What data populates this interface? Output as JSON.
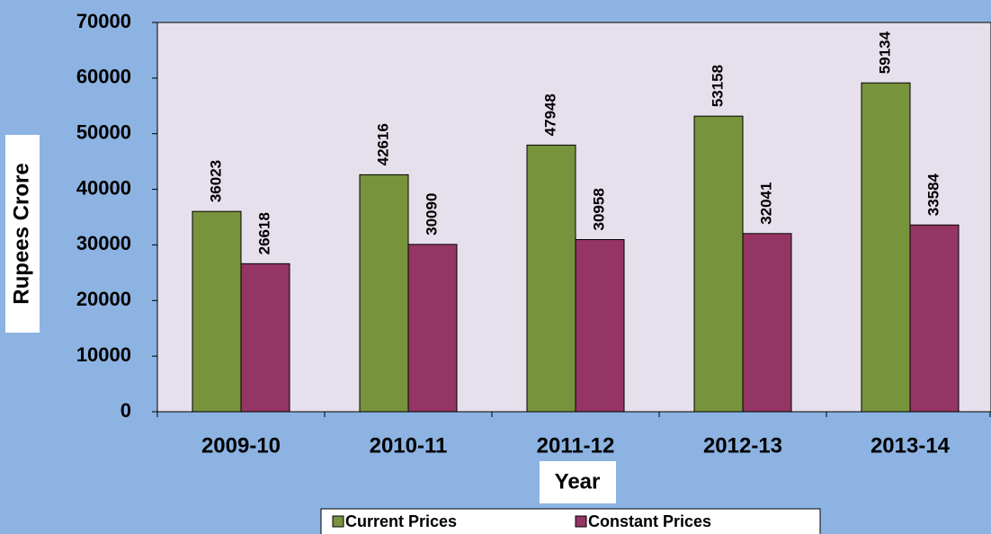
{
  "chart_data": {
    "type": "bar",
    "categories": [
      "2009-10",
      "2010-11",
      "2011-12",
      "2012-13",
      "2013-14"
    ],
    "series": [
      {
        "name": "Current Prices",
        "color": "#77933c",
        "values": [
          36023,
          42616,
          47948,
          53158,
          59134
        ]
      },
      {
        "name": "Constant Prices",
        "color": "#953564",
        "values": [
          26618,
          30090,
          30958,
          32041,
          33584
        ]
      }
    ],
    "ylim": [
      0,
      70000
    ],
    "yticks": [
      0,
      10000,
      20000,
      30000,
      40000,
      50000,
      60000,
      70000
    ],
    "y_axis_label": "Rupees Crore",
    "x_axis_label": "Year",
    "legend": "bottom"
  }
}
